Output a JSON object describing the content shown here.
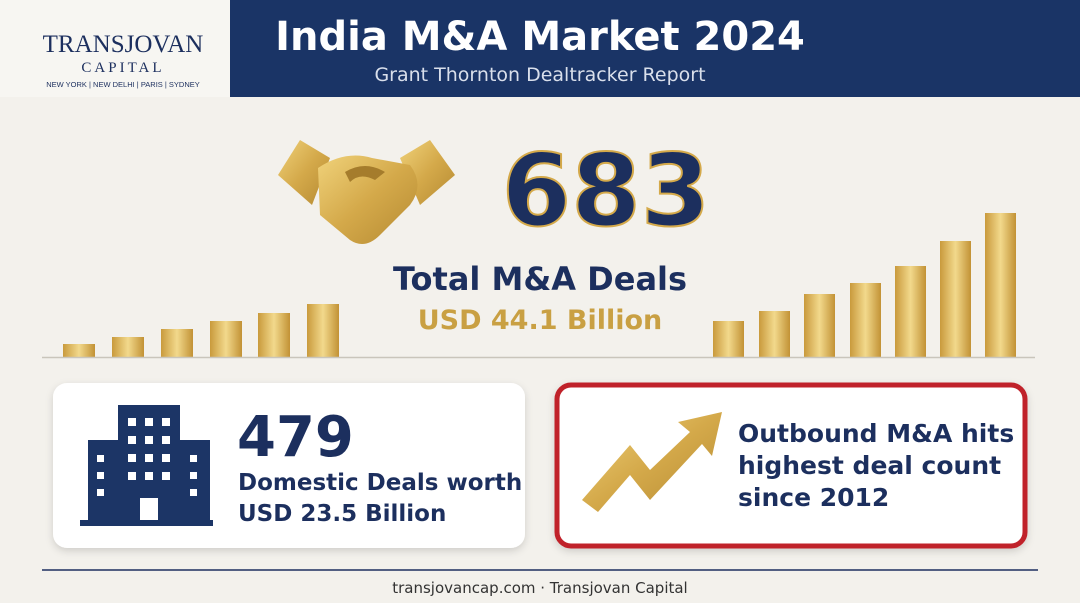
{
  "logo": {
    "name": "TRANSJOVAN",
    "sub": "CAPITAL",
    "cities": "NEW YORK | NEW DELHI | PARIS | SYDNEY"
  },
  "header": {
    "title": "India M&A Market 2024",
    "subtitle": "Grant Thornton Dealtracker Report"
  },
  "hero": {
    "number": 683,
    "label": "Total M&A Deals",
    "value": "USD 44.1 Billion"
  },
  "cards": [
    {
      "number": 479,
      "lines": [
        "Domestic Deals worth",
        "USD 23.5 Billion"
      ]
    },
    {
      "lines": [
        "Outbound M&A hits",
        "highest deal count",
        "since 2012"
      ]
    }
  ],
  "footer": "transjovancap.com · Transjovan Capital"
}
